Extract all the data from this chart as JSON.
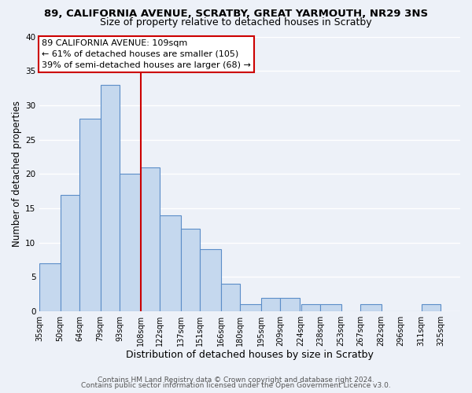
{
  "title1": "89, CALIFORNIA AVENUE, SCRATBY, GREAT YARMOUTH, NR29 3NS",
  "title2": "Size of property relative to detached houses in Scratby",
  "xlabel": "Distribution of detached houses by size in Scratby",
  "ylabel": "Number of detached properties",
  "bar_values": [
    7,
    17,
    28,
    33,
    20,
    21,
    14,
    12,
    9,
    4,
    1,
    2,
    2,
    1,
    1,
    0,
    1,
    0,
    0,
    1
  ],
  "bar_left_edges": [
    35,
    50,
    64,
    79,
    93,
    108,
    122,
    137,
    151,
    166,
    180,
    195,
    209,
    224,
    238,
    253,
    267,
    282,
    296,
    311
  ],
  "bar_widths": [
    15,
    14,
    15,
    14,
    15,
    14,
    15,
    14,
    15,
    14,
    15,
    14,
    14,
    14,
    15,
    14,
    15,
    14,
    15,
    14
  ],
  "tick_labels": [
    "35sqm",
    "50sqm",
    "64sqm",
    "79sqm",
    "93sqm",
    "108sqm",
    "122sqm",
    "137sqm",
    "151sqm",
    "166sqm",
    "180sqm",
    "195sqm",
    "209sqm",
    "224sqm",
    "238sqm",
    "253sqm",
    "267sqm",
    "282sqm",
    "296sqm",
    "311sqm",
    "325sqm"
  ],
  "tick_positions": [
    35,
    50,
    64,
    79,
    93,
    108,
    122,
    137,
    151,
    166,
    180,
    195,
    209,
    224,
    238,
    253,
    267,
    282,
    296,
    311,
    325
  ],
  "bar_color": "#c5d8ee",
  "bar_edge_color": "#5b8dc8",
  "property_line_x": 108,
  "property_line_color": "#cc0000",
  "annotation_text": "89 CALIFORNIA AVENUE: 109sqm\n← 61% of detached houses are smaller (105)\n39% of semi-detached houses are larger (68) →",
  "ylim": [
    0,
    40
  ],
  "yticks": [
    0,
    5,
    10,
    15,
    20,
    25,
    30,
    35,
    40
  ],
  "footer1": "Contains HM Land Registry data © Crown copyright and database right 2024.",
  "footer2": "Contains public sector information licensed under the Open Government Licence v3.0.",
  "bg_color": "#edf1f8",
  "grid_color": "#ffffff",
  "title1_fontsize": 9.5,
  "title2_fontsize": 9,
  "xlabel_fontsize": 9,
  "ylabel_fontsize": 8.5,
  "tick_fontsize": 7,
  "annotation_fontsize": 8,
  "footer_fontsize": 6.5
}
